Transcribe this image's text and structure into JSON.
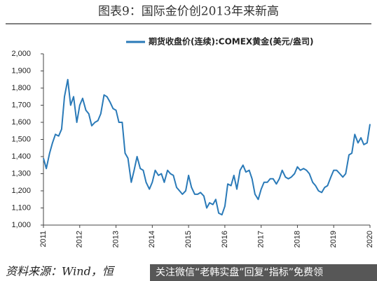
{
  "chart_data": {
    "type": "line",
    "title": "图表9：国际金价创2013年来新高",
    "source": "资料来源：Wind，恒",
    "watermark": "关注微信“老韩实盘”回复“指标”免费领",
    "x": [
      2011,
      2011.08,
      2011.17,
      2011.25,
      2011.33,
      2011.42,
      2011.5,
      2011.58,
      2011.67,
      2011.75,
      2011.83,
      2011.92,
      2012,
      2012.08,
      2012.17,
      2012.25,
      2012.33,
      2012.42,
      2012.5,
      2012.58,
      2012.67,
      2012.75,
      2012.83,
      2012.92,
      2013,
      2013.08,
      2013.17,
      2013.25,
      2013.33,
      2013.42,
      2013.5,
      2013.58,
      2013.67,
      2013.75,
      2013.83,
      2013.92,
      2014,
      2014.08,
      2014.17,
      2014.25,
      2014.33,
      2014.42,
      2014.5,
      2014.58,
      2014.67,
      2014.75,
      2014.83,
      2014.92,
      2015,
      2015.08,
      2015.17,
      2015.25,
      2015.33,
      2015.42,
      2015.5,
      2015.58,
      2015.67,
      2015.75,
      2015.83,
      2015.92,
      2016,
      2016.08,
      2016.17,
      2016.25,
      2016.33,
      2016.42,
      2016.5,
      2016.58,
      2016.67,
      2016.75,
      2016.83,
      2016.92,
      2017,
      2017.08,
      2017.17,
      2017.25,
      2017.33,
      2017.42,
      2017.5,
      2017.58,
      2017.67,
      2017.75,
      2017.83,
      2017.92,
      2018,
      2018.08,
      2018.17,
      2018.25,
      2018.33,
      2018.42,
      2018.5,
      2018.58,
      2018.67,
      2018.75,
      2018.83,
      2018.92,
      2019,
      2019.08,
      2019.17,
      2019.25,
      2019.33,
      2019.42,
      2019.5,
      2019.58,
      2019.67,
      2019.75,
      2019.83,
      2019.92,
      2020
    ],
    "series": [
      {
        "name": "期货收盘价(连续):COMEX黄金(美元/盎司)",
        "color": "#2a7ab8",
        "values": [
          1390,
          1330,
          1420,
          1480,
          1530,
          1520,
          1560,
          1750,
          1850,
          1700,
          1750,
          1600,
          1700,
          1740,
          1670,
          1650,
          1580,
          1600,
          1610,
          1650,
          1760,
          1750,
          1720,
          1680,
          1670,
          1600,
          1600,
          1420,
          1390,
          1250,
          1320,
          1400,
          1330,
          1320,
          1250,
          1210,
          1250,
          1320,
          1290,
          1300,
          1250,
          1320,
          1300,
          1290,
          1220,
          1200,
          1180,
          1200,
          1290,
          1220,
          1180,
          1180,
          1190,
          1170,
          1100,
          1130,
          1120,
          1150,
          1070,
          1060,
          1110,
          1240,
          1230,
          1290,
          1210,
          1320,
          1350,
          1310,
          1320,
          1270,
          1180,
          1150,
          1210,
          1250,
          1250,
          1270,
          1270,
          1240,
          1270,
          1320,
          1280,
          1270,
          1280,
          1300,
          1340,
          1320,
          1330,
          1320,
          1300,
          1250,
          1230,
          1200,
          1190,
          1220,
          1230,
          1280,
          1320,
          1320,
          1300,
          1280,
          1300,
          1410,
          1420,
          1530,
          1480,
          1510,
          1470,
          1480,
          1590
        ]
      }
    ],
    "xlim": [
      2011,
      2020
    ],
    "xticks": [
      2011,
      2012,
      2013,
      2014,
      2015,
      2016,
      2017,
      2018,
      2019,
      2020
    ],
    "ylim": [
      1000,
      2000
    ],
    "yticks": [
      {
        "value": 1000,
        "label": "1,000"
      },
      {
        "value": 1100,
        "label": "1,100"
      },
      {
        "value": 1200,
        "label": "1,200"
      },
      {
        "value": 1300,
        "label": "1,300"
      },
      {
        "value": 1400,
        "label": "1,400"
      },
      {
        "value": 1500,
        "label": "1,500"
      },
      {
        "value": 1600,
        "label": "1,600"
      },
      {
        "value": 1700,
        "label": "1,700"
      },
      {
        "value": 1800,
        "label": "1,800"
      },
      {
        "value": 1900,
        "label": "1,900"
      },
      {
        "value": 2000,
        "label": "2,000"
      }
    ],
    "grid": false
  }
}
